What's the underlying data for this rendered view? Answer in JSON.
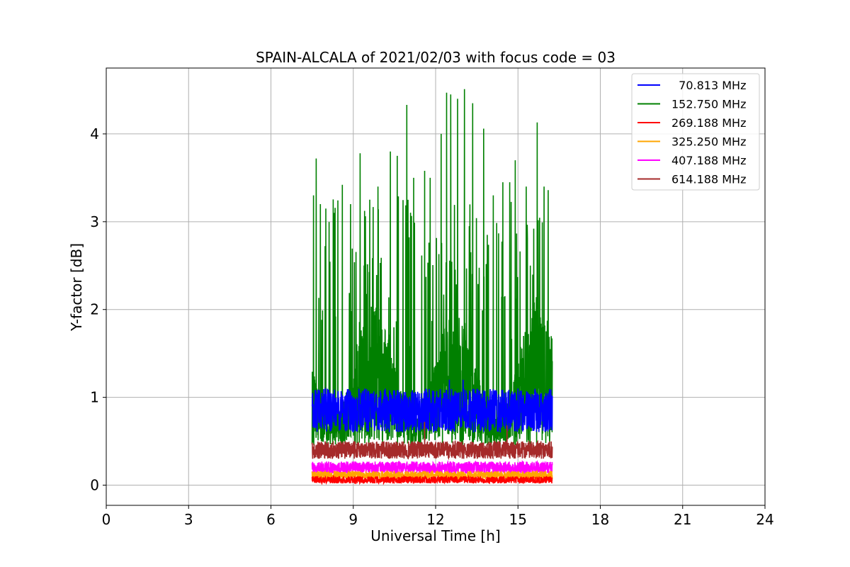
{
  "chart_data": {
    "type": "line",
    "title": "SPAIN-ALCALA of 2021/02/03 with focus code = 03",
    "xlabel": "Universal Time [h]",
    "ylabel": "Y-factor [dB]",
    "xlim": [
      0,
      24
    ],
    "ylim": [
      -0.23,
      4.75
    ],
    "xticks": [
      0,
      3,
      6,
      9,
      12,
      15,
      18,
      21,
      24
    ],
    "yticks": [
      0,
      1,
      2,
      3,
      4
    ],
    "grid": true,
    "legend_position": "top-right",
    "time_range": [
      7.5,
      16.25
    ],
    "series": [
      {
        "name": "  70.813 MHz",
        "color": "#0000ff",
        "baseline": 0.95,
        "spread": 0.25,
        "peak_hours": [
          11.0,
          12.5,
          12.7,
          13.0,
          15.0
        ],
        "peak_values": [
          0.85,
          1.2,
          1.05,
          1.2,
          1.1
        ]
      },
      {
        "name": "152.750 MHz",
        "color": "#008000",
        "baseline": 1.0,
        "spread": 0.5,
        "peak_hours": [
          7.55,
          7.65,
          7.8,
          8.0,
          8.3,
          8.6,
          8.9,
          9.25,
          9.6,
          9.9,
          10.35,
          10.6,
          10.95,
          11.2,
          11.6,
          11.8,
          12.2,
          12.4,
          12.55,
          12.8,
          13.05,
          13.35,
          13.75,
          14.1,
          14.45,
          14.7,
          14.9,
          15.3,
          15.7,
          15.95,
          16.1
        ],
        "peak_values": [
          3.3,
          3.72,
          3.2,
          3.15,
          3.1,
          3.42,
          3.2,
          3.78,
          3.25,
          3.4,
          3.8,
          3.75,
          4.33,
          3.5,
          3.58,
          3.5,
          4.0,
          4.47,
          4.45,
          4.4,
          4.51,
          4.35,
          4.06,
          3.3,
          3.45,
          3.45,
          3.7,
          3.4,
          4.13,
          3.4,
          3.36
        ]
      },
      {
        "name": "269.188 MHz",
        "color": "#ff0000",
        "baseline": 0.06,
        "spread": 0.04,
        "peak_hours": [],
        "peak_values": []
      },
      {
        "name": "325.250 MHz",
        "color": "#ffa500",
        "baseline": 0.11,
        "spread": 0.05,
        "peak_hours": [],
        "peak_values": []
      },
      {
        "name": "407.188 MHz",
        "color": "#ff00ff",
        "baseline": 0.2,
        "spread": 0.07,
        "peak_hours": [],
        "peak_values": []
      },
      {
        "name": "614.188 MHz",
        "color": "#a52a2a",
        "baseline": 0.4,
        "spread": 0.1,
        "peak_hours": [
          11.6,
          14.6
        ],
        "peak_values": [
          0.72,
          0.68
        ]
      }
    ]
  }
}
